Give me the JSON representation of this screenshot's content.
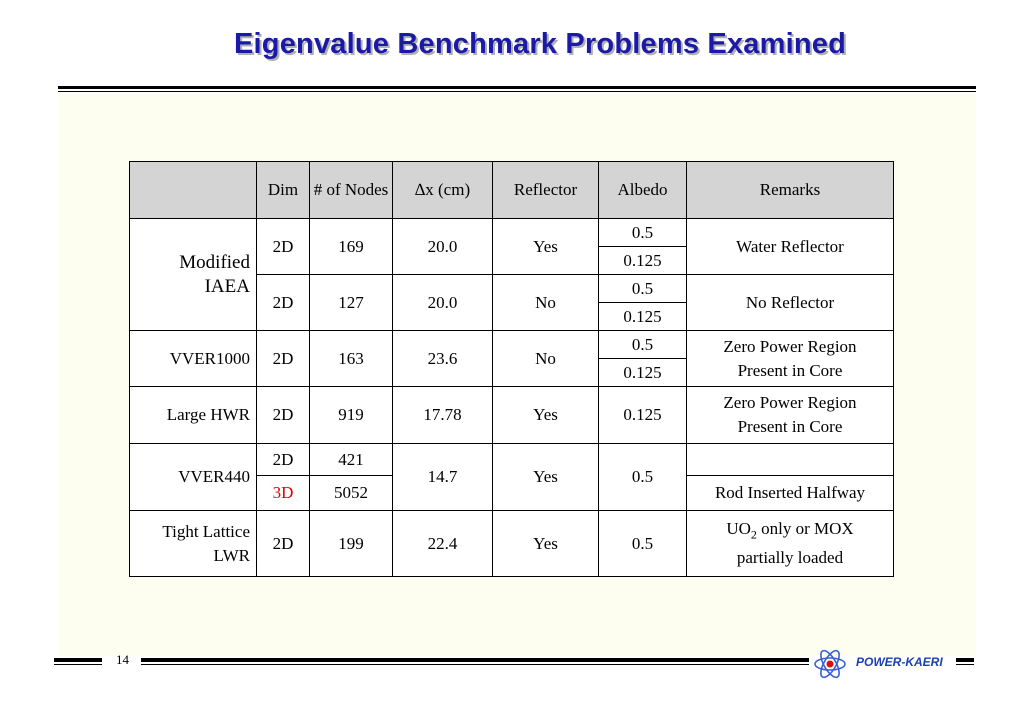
{
  "title": "Eigenvalue Benchmark Problems Examined",
  "table": {
    "headers": [
      "Dim",
      "# of Nodes",
      "∆x (cm)",
      "Reflector",
      "Albedo",
      "Remarks"
    ],
    "iaea": {
      "name": "Modified IAEA",
      "r1": {
        "dim": "2D",
        "nodes": "169",
        "dx": "20.0",
        "reflector": "Yes",
        "albedo_a": "0.5",
        "albedo_b": "0.125",
        "remarks": "Water Reflector"
      },
      "r2": {
        "dim": "2D",
        "nodes": "127",
        "dx": "20.0",
        "reflector": "No",
        "albedo_a": "0.5",
        "albedo_b": "0.125",
        "remarks": "No Reflector"
      }
    },
    "vver1000": {
      "name": "VVER1000",
      "dim": "2D",
      "nodes": "163",
      "dx": "23.6",
      "reflector": "No",
      "albedo_a": "0.5",
      "albedo_b": "0.125",
      "remarks_1": "Zero Power Region",
      "remarks_2": "Present in Core"
    },
    "hwr": {
      "name": "Large HWR",
      "dim": "2D",
      "nodes": "919",
      "dx": "17.78",
      "reflector": "Yes",
      "albedo": "0.125",
      "remarks_1": "Zero Power Region",
      "remarks_2": "Present in Core"
    },
    "vver440": {
      "name": "VVER440",
      "dim_a": "2D",
      "nodes_a": "421",
      "dim_b": "3D",
      "nodes_b": "5052",
      "dx": "14.7",
      "reflector": "Yes",
      "albedo": "0.5",
      "remarks": "Rod Inserted Halfway"
    },
    "tight": {
      "name_1": "Tight Lattice",
      "name_2": "LWR",
      "dim": "2D",
      "nodes": "199",
      "dx": "22.4",
      "reflector": "Yes",
      "albedo": "0.5",
      "remarks_1a": "UO",
      "remarks_1sub": "2",
      "remarks_1b": " only or MOX",
      "remarks_2": "partially loaded"
    }
  },
  "footer": {
    "page": "14",
    "brand": "POWER-KAERI"
  },
  "colors": {
    "title": "#1a1aa6",
    "highlight": "#e00000",
    "brand": "#1a3fb0",
    "panel": "#fdfdf0",
    "header_bg": "#d4d4d4"
  },
  "icons": {
    "logo": "atom-logo-icon"
  }
}
